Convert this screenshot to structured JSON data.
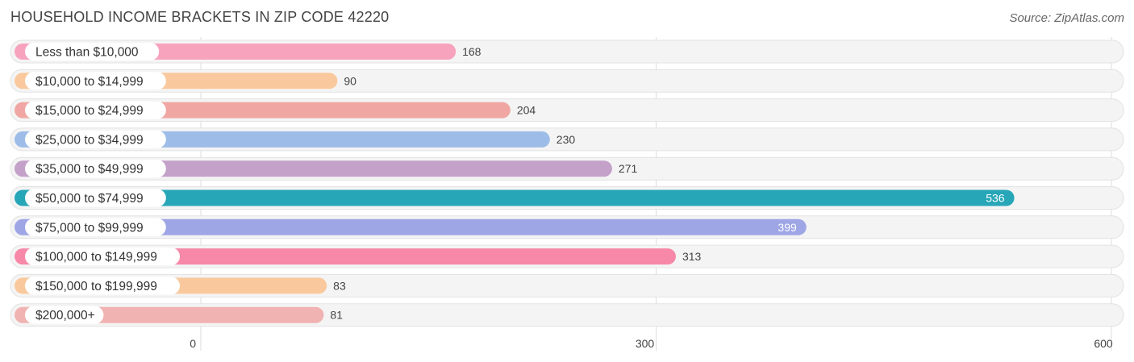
{
  "header": {
    "title": "HOUSEHOLD INCOME BRACKETS IN ZIP CODE 42220",
    "source": "Source: ZipAtlas.com"
  },
  "chart_data": {
    "type": "bar",
    "orientation": "horizontal",
    "title": "HOUSEHOLD INCOME BRACKETS IN ZIP CODE 42220",
    "xlabel": "",
    "ylabel": "",
    "xlim": [
      0,
      600
    ],
    "xticks": [
      0,
      300,
      600
    ],
    "grid": true,
    "categories": [
      "Less than $10,000",
      "$10,000 to $14,999",
      "$15,000 to $24,999",
      "$25,000 to $34,999",
      "$35,000 to $49,999",
      "$50,000 to $74,999",
      "$75,000 to $99,999",
      "$100,000 to $149,999",
      "$150,000 to $199,999",
      "$200,000+"
    ],
    "values": [
      168,
      90,
      204,
      230,
      271,
      536,
      399,
      313,
      83,
      81
    ],
    "colors": [
      "#f7a3bd",
      "#f9c99d",
      "#f0a7a3",
      "#9dbde8",
      "#c4a1c9",
      "#27a6b8",
      "#9ea6e6",
      "#f788a8",
      "#f9c99d",
      "#f0b3b1"
    ],
    "value_label_inside": [
      false,
      false,
      false,
      false,
      false,
      true,
      true,
      false,
      false,
      false
    ]
  }
}
